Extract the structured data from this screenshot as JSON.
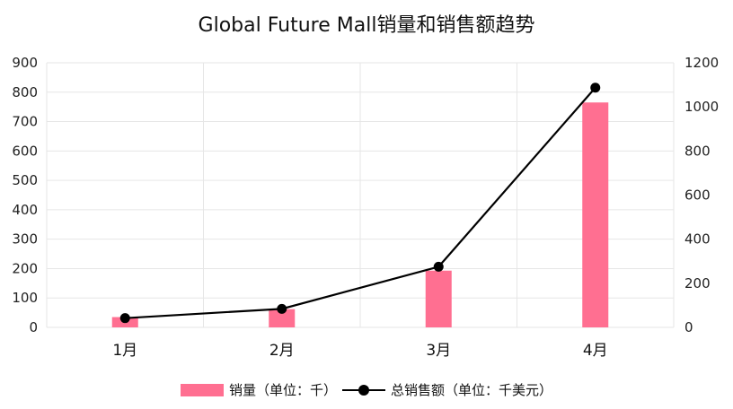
{
  "chart_data": {
    "type": "bar+line",
    "title": "Global Future Mall销量和销售额趋势",
    "categories": [
      "1月",
      "2月",
      "3月",
      "4月"
    ],
    "series": [
      {
        "name": "销量（单位：千）",
        "type": "bar",
        "axis": "left",
        "values": [
          35,
          62,
          193,
          765
        ]
      },
      {
        "name": "总销售额（单位：千美元）",
        "type": "line",
        "axis": "right",
        "values": [
          42,
          84,
          275,
          1087
        ]
      }
    ],
    "y_left": {
      "lim": [
        0,
        900
      ],
      "ticks": [
        0,
        100,
        200,
        300,
        400,
        500,
        600,
        700,
        800,
        900
      ]
    },
    "y_right": {
      "lim": [
        0,
        1200
      ],
      "ticks": [
        0,
        200,
        400,
        600,
        800,
        1000,
        1200
      ]
    },
    "grid": true,
    "legend_position": "bottom",
    "colors": {
      "bar": "#ff6f91",
      "line": "#000000",
      "grid": "#e6e6e6"
    }
  }
}
